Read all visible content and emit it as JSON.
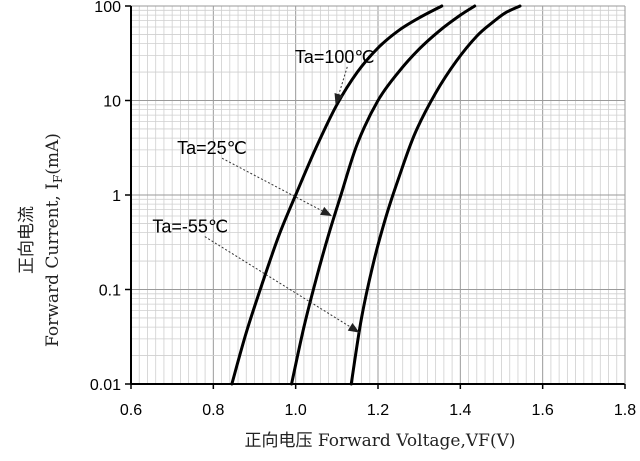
{
  "chart_data": {
    "type": "line",
    "title": "",
    "xlabel": "正向电压 Forward Voltage,VF(V)",
    "ylabel_cn": "正向电流",
    "ylabel_en": "Forward Current, I",
    "ylabel_sub": "F",
    "ylabel_unit": "(mA)",
    "xlim": [
      0.6,
      1.8
    ],
    "ylim": [
      0.01,
      100
    ],
    "yscale": "log",
    "grid": true,
    "x_ticks": [
      "0.6",
      "0.8",
      "1.0",
      "1.2",
      "1.4",
      "1.6",
      "1.8"
    ],
    "y_ticks": [
      "0.01",
      "0.1",
      "1",
      "10",
      "100"
    ],
    "series": [
      {
        "name": "Ta=100℃",
        "x": [
          0.845,
          0.88,
          0.92,
          0.96,
          1.0,
          1.05,
          1.1,
          1.15,
          1.2,
          1.25,
          1.3,
          1.355
        ],
        "y": [
          0.01,
          0.035,
          0.12,
          0.38,
          1.0,
          3.2,
          9.0,
          20,
          36,
          55,
          75,
          100
        ]
      },
      {
        "name": "Ta=25℃",
        "x": [
          0.99,
          1.02,
          1.05,
          1.08,
          1.11,
          1.15,
          1.2,
          1.25,
          1.3,
          1.35,
          1.4,
          1.435
        ],
        "y": [
          0.01,
          0.04,
          0.13,
          0.38,
          1.0,
          3.5,
          10,
          20,
          35,
          55,
          80,
          100
        ]
      },
      {
        "name": "Ta=-55℃",
        "x": [
          1.135,
          1.16,
          1.19,
          1.22,
          1.25,
          1.29,
          1.34,
          1.39,
          1.44,
          1.48,
          1.51,
          1.545
        ],
        "y": [
          0.01,
          0.05,
          0.2,
          0.6,
          1.5,
          4.5,
          12,
          26,
          48,
          68,
          85,
          100
        ]
      }
    ],
    "annotations": [
      {
        "text": "Ta=100℃",
        "text_x": 0.998,
        "text_y": 25,
        "arrow_x": 1.097,
        "arrow_y": 9
      },
      {
        "text": "Ta=25℃",
        "text_x": 0.712,
        "text_y": 2.7,
        "arrow_x": 1.088,
        "arrow_y": 0.6
      },
      {
        "text": "Ta=-55℃",
        "text_x": 0.652,
        "text_y": 0.4,
        "arrow_x": 1.155,
        "arrow_y": 0.035
      }
    ]
  }
}
